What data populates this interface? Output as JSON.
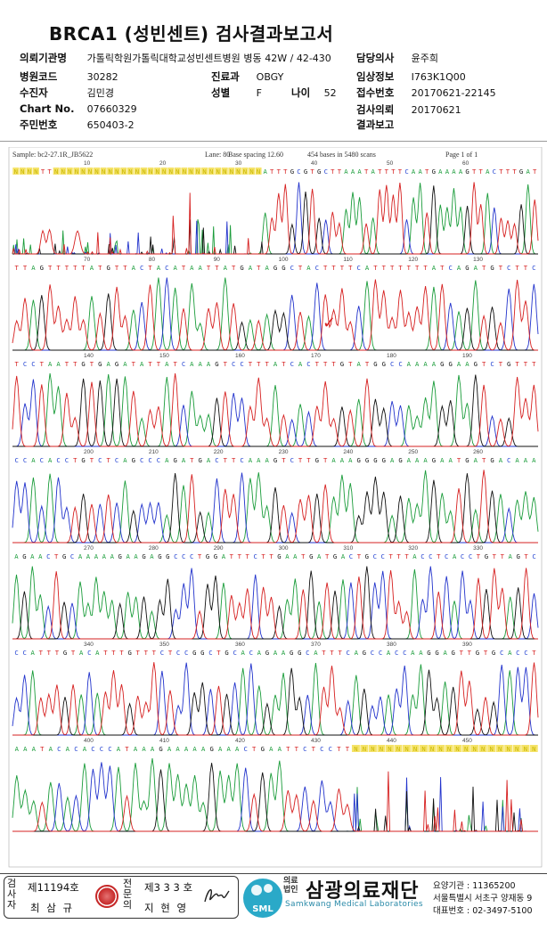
{
  "report": {
    "title": "BRCA1 (성빈센트) 검사결과보고서",
    "fields": {
      "institution_label": "의뢰기관명",
      "institution_value": "가톨릭학원가톨릭대학교성빈센트병원",
      "ward_label": "병동",
      "ward_value": "42W / 42-430",
      "hospital_code_label": "병원코드",
      "hospital_code_value": "30282",
      "department_label": "진료과",
      "department_value": "OBGY",
      "patient_label": "수진자",
      "patient_value": "김민경",
      "sex_label": "성별",
      "sex_value": "F",
      "age_label": "나이",
      "age_value": "52",
      "chart_no_label": "Chart No.",
      "chart_no_value": "07660329",
      "id_no_label": "주민번호",
      "id_no_value": "650403-2",
      "doctor_label": "담당의사",
      "doctor_value": "윤주희",
      "clinical_label": "임상정보",
      "clinical_value": "I763K1Q00",
      "receipt_label": "접수번호",
      "receipt_value": "20170621-22145",
      "request_label": "검사의뢰",
      "request_value": "20170621",
      "result_label": "결과보고",
      "result_value": ""
    }
  },
  "chromatogram": {
    "header_sample": "Sample: bc2-27.1R_JB5622",
    "header_lane": "Lane: 80",
    "header_spacing": "Base spacing 12.60",
    "header_bases": "454 bases in 5480 scans",
    "header_page": "Page 1 of 1",
    "base_colors": {
      "A": "#1a9c3a",
      "C": "#1f3fd1",
      "G": "#111111",
      "T": "#d62020",
      "N": "#c9b800"
    },
    "trace_colors": {
      "A": "#1a9c3a",
      "C": "#2233cc",
      "G": "#111111",
      "T": "#d62020"
    },
    "annotation_mark": "✓",
    "rows": [
      {
        "sequence": "NNNNTTNNNNNNNNNNNNNNNNNNNNNNNNNNNNNNNATTTGCGTGCTTAAATATTTTCAATGAAAAGTTACTTTGAT",
        "positions": [
          "10",
          "20",
          "30",
          "40",
          "50",
          "60"
        ]
      },
      {
        "sequence": "TTAGTTTTTATGTTACTACATAATTATGATAGGCTACTTTTCATTTTTTTATCAGATGTCTTC",
        "positions": [
          "70",
          "80",
          "90",
          "100",
          "110",
          "120",
          "130"
        ]
      },
      {
        "sequence": "TCCTAATTGTGAGATATTATCAAAGTCCTTTATCACTTTGTATGGCCAAAAGGAAGTCTGTTT",
        "positions": [
          "140",
          "150",
          "160",
          "170",
          "180",
          "190"
        ]
      },
      {
        "sequence": "CCACACCTGTCTCAGCCCAGATGACTTCAAAGTCTTGTAAAGGGGAGAAAGAATGATGACAAA",
        "positions": [
          "200",
          "210",
          "220",
          "230",
          "240",
          "250",
          "260"
        ]
      },
      {
        "sequence": "AGAACTGCAAAAAGAAGAGGCCCTGGATTTCTTGAATGATGACTGCCTTTACCTCACCTGTTAGTC",
        "positions": [
          "270",
          "280",
          "290",
          "300",
          "310",
          "320",
          "330"
        ]
      },
      {
        "sequence": "CCATTTGTACATTTGTTTCTCCGGCTGCACAGAAGGCATTTCAGCCACCAAGGAGTTGTGCACCT",
        "positions": [
          "340",
          "350",
          "360",
          "370",
          "380",
          "390"
        ]
      },
      {
        "sequence": "AAATACACACCCATAAAGAAAAAGAAACTGAATTCTCCTTNNNNNNNNNNNNNNNNNNNNNN",
        "positions": [
          "400",
          "410",
          "420",
          "430",
          "440",
          "450"
        ]
      }
    ]
  },
  "footer": {
    "tester_vertical": "검사자",
    "tester_no": "제11194호",
    "tester_name": "최 삼 규",
    "specialist_vertical": "전문의",
    "specialist_no": "제3 3 3 호",
    "specialist_name": "지 현 영",
    "logo_text": "SML",
    "brand_small": "의료\n법인",
    "brand": "삼광의료재단",
    "brand_en": "Samkwang Medical Laboratories",
    "org_code": "요양기관 : 11365200",
    "org_address": "서울특별시 서초구 양재동 9",
    "org_phone": "대표번호 : 02-3497-5100"
  }
}
